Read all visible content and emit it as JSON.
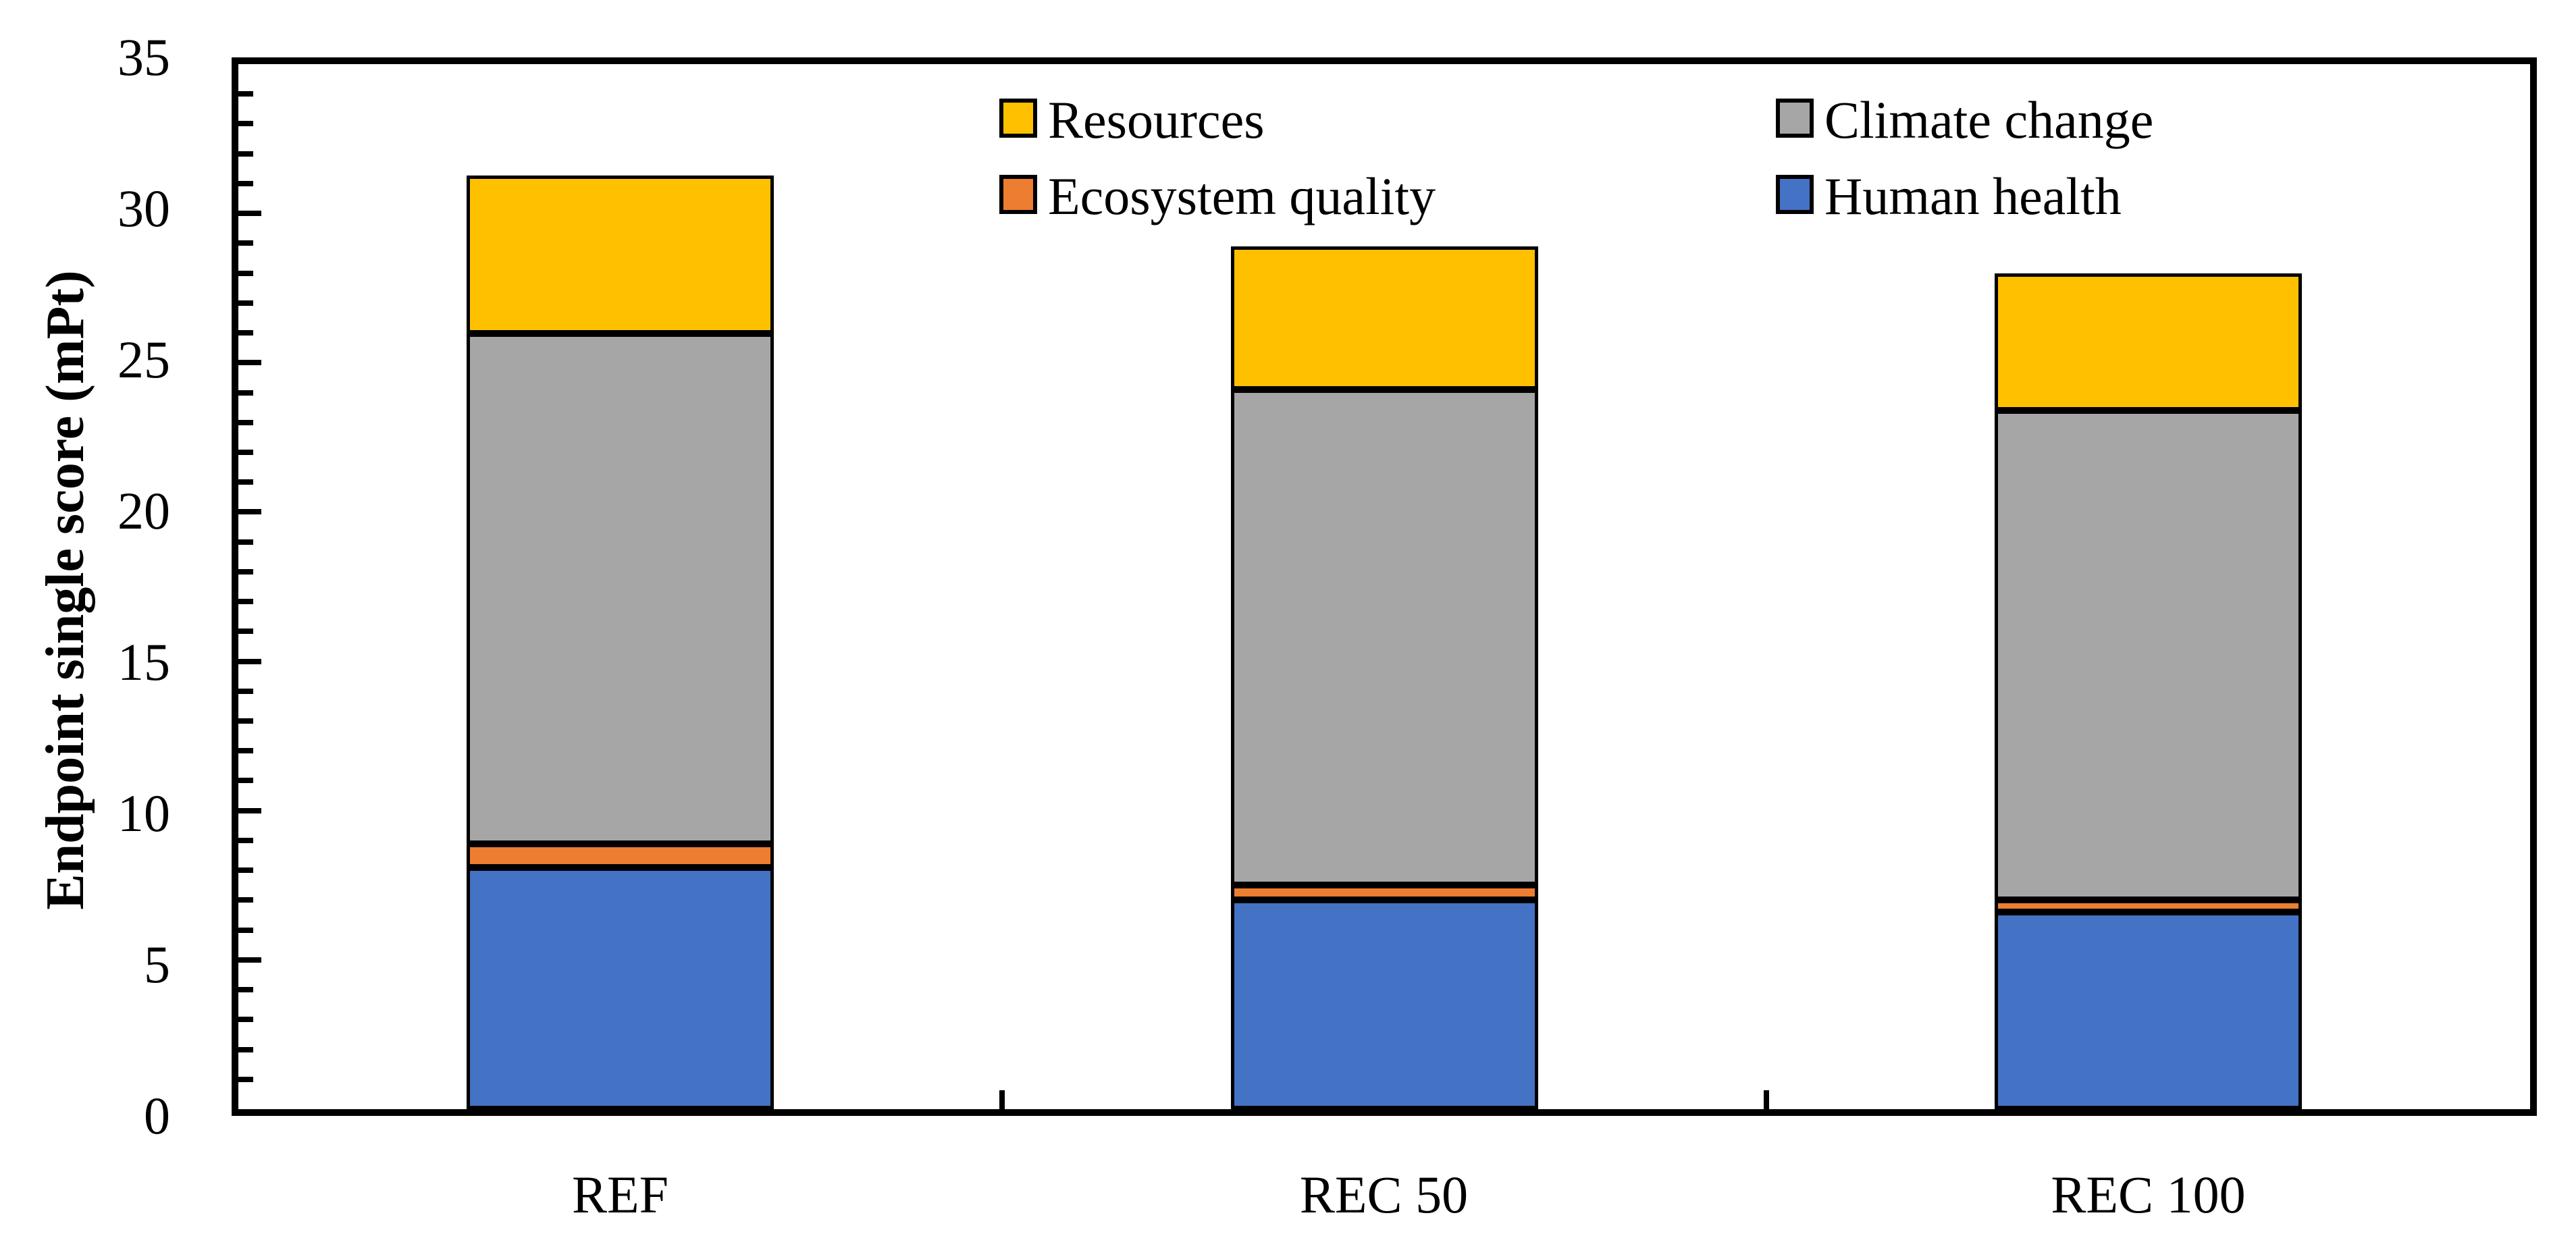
{
  "chart_data": {
    "type": "bar",
    "stacked": true,
    "categories": [
      "REF",
      "REC 50",
      "REC 100"
    ],
    "series": [
      {
        "name": "Human health",
        "color": "#4472C4",
        "values": [
          8.1,
          7.0,
          6.6
        ]
      },
      {
        "name": "Ecosystem quality",
        "color": "#ED7D31",
        "values": [
          0.8,
          0.5,
          0.4
        ]
      },
      {
        "name": "Climate change",
        "color": "#A6A6A6",
        "values": [
          17.1,
          16.6,
          16.4
        ]
      },
      {
        "name": "Resources",
        "color": "#FFC000",
        "values": [
          5.3,
          4.8,
          4.6
        ]
      }
    ],
    "ylabel": "Endpoint single score (mPt)",
    "ylim": [
      0,
      35
    ],
    "y_major_tick_step": 5,
    "y_minor_tick_step": 1,
    "y_tick_labels": [
      "0",
      "5",
      "10",
      "15",
      "20",
      "25",
      "30",
      "35"
    ],
    "grid": "off",
    "bar_border_color": "#000000",
    "legend_position": "top-inside-two-columns",
    "legend_items": [
      {
        "label": "Resources",
        "color": "#FFC000"
      },
      {
        "label": "Climate change",
        "color": "#A6A6A6"
      },
      {
        "label": "Ecosystem quality",
        "color": "#ED7D31"
      },
      {
        "label": "Human health",
        "color": "#4472C4"
      }
    ]
  }
}
